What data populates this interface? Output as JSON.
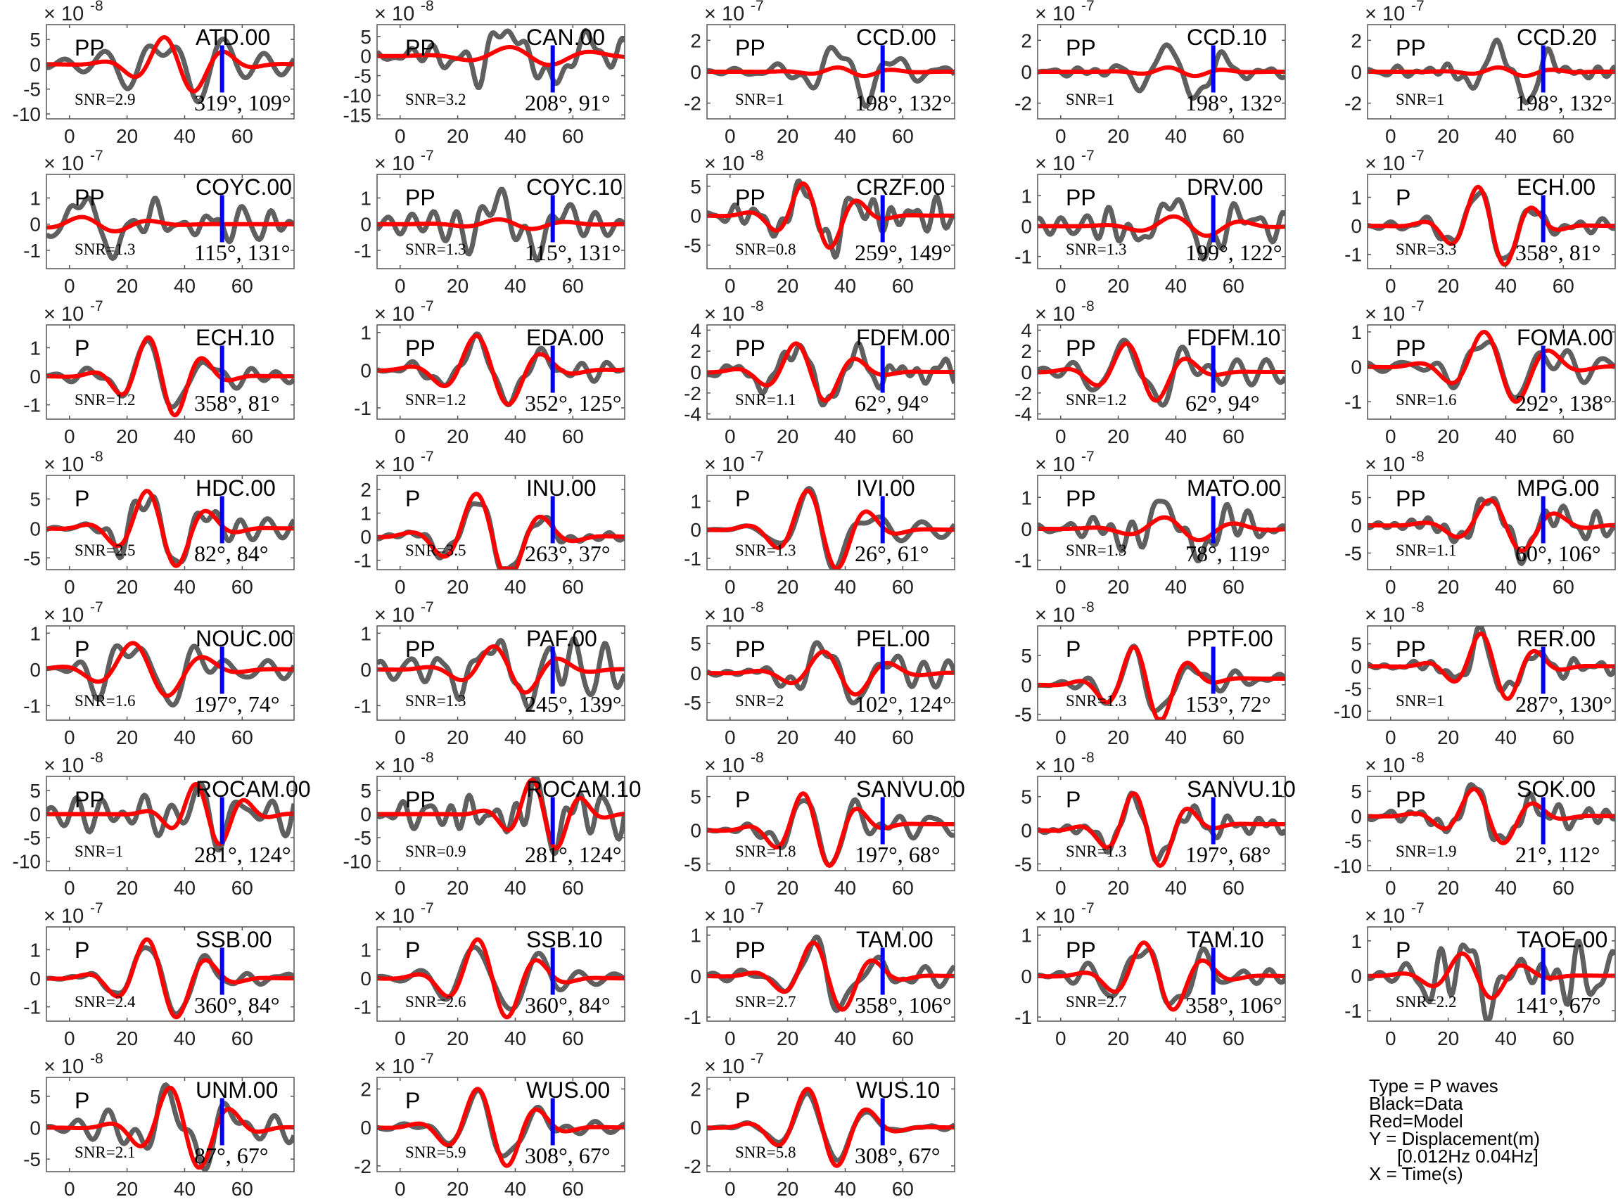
{
  "legend": {
    "type": "Type = P waves",
    "black": "Black=Data",
    "red": "Red=Model",
    "y": "Y = Displacement(m)",
    "band": "[0.012Hz 0.04Hz]",
    "x": "X = Time(s)"
  },
  "colors": {
    "data": "#5f5f5f",
    "model": "#ff0000",
    "marker": "#0000ee",
    "axis": "#555555"
  },
  "chart_data": {
    "type": "line",
    "x_ticks": [
      0,
      20,
      40,
      60
    ],
    "xlim": [
      -8,
      78
    ],
    "marker_time": 53,
    "panels": [
      {
        "station": "ATD.00",
        "phase": "PP",
        "snr": "SNR=2.9",
        "angles": "319°, 109°",
        "exp": "-8",
        "yticks": [
          5,
          0,
          -5,
          -10
        ],
        "ylim": [
          -11,
          8
        ],
        "model": {
          "amp": 6,
          "center": 38,
          "period": 22,
          "bg": 0
        },
        "data": {
          "amp": 7.5,
          "noise": 1.2,
          "phase": 0
        }
      },
      {
        "station": "CAN.00",
        "phase": "PP",
        "snr": "SNR=3.2",
        "angles": "208°, 91°",
        "exp": "-8",
        "yticks": [
          5,
          0,
          -5,
          -10,
          -15
        ],
        "ylim": [
          -16,
          8
        ],
        "model": {
          "amp": 2.5,
          "center": 45,
          "period": 30,
          "bg": 0
        },
        "data": {
          "amp": 8,
          "noise": 1.5,
          "phase": 1
        }
      },
      {
        "station": "CCD.00",
        "phase": "PP",
        "snr": "SNR=1",
        "angles": "198°, 132°",
        "exp": "-7",
        "yticks": [
          2,
          0,
          -2
        ],
        "ylim": [
          -3,
          3
        ],
        "model": {
          "amp": 0.3,
          "center": 42,
          "period": 20,
          "bg": 0
        },
        "data": {
          "amp": 2.3,
          "noise": 0.2,
          "phase": 2
        }
      },
      {
        "station": "CCD.10",
        "phase": "PP",
        "snr": "SNR=1",
        "angles": "198°, 132°",
        "exp": "-7",
        "yticks": [
          2,
          0,
          -2
        ],
        "ylim": [
          -3,
          3
        ],
        "model": {
          "amp": 0.3,
          "center": 42,
          "period": 20,
          "bg": 0
        },
        "data": {
          "amp": 2.3,
          "noise": 0.2,
          "phase": 2
        }
      },
      {
        "station": "CCD.20",
        "phase": "PP",
        "snr": "SNR=1",
        "angles": "198°, 132°",
        "exp": "-7",
        "yticks": [
          2,
          0,
          -2
        ],
        "ylim": [
          -3,
          3
        ],
        "model": {
          "amp": 0.3,
          "center": 42,
          "period": 20,
          "bg": 0
        },
        "data": {
          "amp": 2.3,
          "noise": 0.2,
          "phase": 2
        }
      },
      {
        "station": "COYC.00",
        "phase": "PP",
        "snr": "SNR=1.3",
        "angles": "115°, 131°",
        "exp": "-7",
        "yticks": [
          1,
          0,
          -1
        ],
        "ylim": [
          -1.7,
          1.9
        ],
        "model": {
          "amp": 0.3,
          "center": 10,
          "period": 25,
          "bg": 0
        },
        "data": {
          "amp": 1.2,
          "noise": 0.3,
          "phase": 3
        }
      },
      {
        "station": "COYC.10",
        "phase": "PP",
        "snr": "SNR=1.3",
        "angles": "115°, 131°",
        "exp": "-7",
        "yticks": [
          1,
          0,
          -1
        ],
        "ylim": [
          -1.7,
          1.9
        ],
        "model": {
          "amp": 0.2,
          "center": 40,
          "period": 25,
          "bg": 0
        },
        "data": {
          "amp": 1.2,
          "noise": 0.3,
          "phase": 3
        }
      },
      {
        "station": "CRZF.00",
        "phase": "PP",
        "snr": "SNR=0.8",
        "angles": "259°, 149°",
        "exp": "-8",
        "yticks": [
          5,
          0,
          -5
        ],
        "ylim": [
          -9,
          7
        ],
        "model": {
          "amp": 6,
          "center": 30,
          "period": 20,
          "bg": 0
        },
        "data": {
          "amp": 6.5,
          "noise": 1,
          "phase": 4
        }
      },
      {
        "station": "DRV.00",
        "phase": "PP",
        "snr": "SNR=1.3",
        "angles": "199°, 122°",
        "exp": "-7",
        "yticks": [
          1,
          0,
          -1
        ],
        "ylim": [
          -1.4,
          1.7
        ],
        "model": {
          "amp": 0.35,
          "center": 45,
          "period": 25,
          "bg": 0
        },
        "data": {
          "amp": 1.1,
          "noise": 0.25,
          "phase": 5
        }
      },
      {
        "station": "ECH.00",
        "phase": "P",
        "snr": "SNR=3.3",
        "angles": "358°, 81°",
        "exp": "-7",
        "yticks": [
          1,
          0,
          -1
        ],
        "ylim": [
          -1.5,
          1.8
        ],
        "model": {
          "amp": 1.5,
          "center": 35,
          "period": 20,
          "bg": 0
        },
        "data": {
          "amp": 1.6,
          "noise": 0.1,
          "phase": 0
        }
      },
      {
        "station": "ECH.10",
        "phase": "P",
        "snr": "SNR=1.2",
        "angles": "358°, 81°",
        "exp": "-7",
        "yticks": [
          1,
          0,
          -1
        ],
        "ylim": [
          -1.5,
          1.8
        ],
        "model": {
          "amp": 1.5,
          "center": 32,
          "period": 20,
          "bg": 0
        },
        "data": {
          "amp": 1.6,
          "noise": 0.1,
          "phase": 0
        }
      },
      {
        "station": "EDA.00",
        "phase": "PP",
        "snr": "SNR=1.2",
        "angles": "352°, 125°",
        "exp": "-7",
        "yticks": [
          1,
          0,
          -1
        ],
        "ylim": [
          -1.3,
          1.2
        ],
        "model": {
          "amp": 1,
          "center": 32,
          "period": 24,
          "bg": 0
        },
        "data": {
          "amp": 1.05,
          "noise": 0.1,
          "phase": 1
        }
      },
      {
        "station": "FDFM.00",
        "phase": "PP",
        "snr": "SNR=1.1",
        "angles": "62°, 94°",
        "exp": "-8",
        "yticks": [
          4,
          2,
          0,
          -2,
          -4
        ],
        "ylim": [
          -4.5,
          4.5
        ],
        "model": {
          "amp": 3,
          "center": 28,
          "period": 22,
          "bg": 0
        },
        "data": {
          "amp": 3.8,
          "noise": 0.6,
          "phase": 2
        }
      },
      {
        "station": "FDFM.10",
        "phase": "PP",
        "snr": "SNR=1.2",
        "angles": "62°, 94°",
        "exp": "-8",
        "yticks": [
          4,
          2,
          0,
          -2,
          -4
        ],
        "ylim": [
          -4.5,
          4.5
        ],
        "model": {
          "amp": 3,
          "center": 28,
          "period": 22,
          "bg": 0
        },
        "data": {
          "amp": 3.8,
          "noise": 0.6,
          "phase": 2
        }
      },
      {
        "station": "FOMA.00",
        "phase": "PP",
        "snr": "SNR=1.6",
        "angles": "292°, 138°",
        "exp": "-7",
        "yticks": [
          1,
          0,
          -1
        ],
        "ylim": [
          -1.5,
          1.2
        ],
        "model": {
          "amp": 1.1,
          "center": 38,
          "period": 24,
          "bg": 0
        },
        "data": {
          "amp": 1,
          "noise": 0.15,
          "phase": 3
        }
      },
      {
        "station": "HDC.00",
        "phase": "P",
        "snr": "SNR=2.5",
        "angles": "82°, 84°",
        "exp": "-8",
        "yticks": [
          5,
          0,
          -5
        ],
        "ylim": [
          -7,
          9
        ],
        "model": {
          "amp": 7,
          "center": 32,
          "period": 22,
          "bg": 0
        },
        "data": {
          "amp": 7.5,
          "noise": 0.8,
          "phase": 4
        }
      },
      {
        "station": "INU.00",
        "phase": "P",
        "snr": "SNR=3.5",
        "angles": "263°, 37°",
        "exp": "-7",
        "yticks": [
          2,
          1,
          0,
          -1
        ],
        "ylim": [
          -1.4,
          2.6
        ],
        "model": {
          "amp": 2,
          "center": 32,
          "period": 24,
          "bg": 0
        },
        "data": {
          "amp": 2,
          "noise": 0.1,
          "phase": 5
        }
      },
      {
        "station": "IVI.00",
        "phase": "P",
        "snr": "SNR=1.3",
        "angles": "26°, 61°",
        "exp": "-7",
        "yticks": [
          1,
          0,
          -1
        ],
        "ylim": [
          -1.4,
          1.9
        ],
        "model": {
          "amp": 1.5,
          "center": 32,
          "period": 22,
          "bg": 0
        },
        "data": {
          "amp": 1.6,
          "noise": 0.15,
          "phase": 0
        }
      },
      {
        "station": "MATO.00",
        "phase": "PP",
        "snr": "SNR=1.3",
        "angles": "78°, 119°",
        "exp": "-7",
        "yticks": [
          1,
          0,
          -1
        ],
        "ylim": [
          -1.3,
          1.7
        ],
        "model": {
          "amp": 0.4,
          "center": 42,
          "period": 26,
          "bg": 0
        },
        "data": {
          "amp": 1,
          "noise": 0.2,
          "phase": 1
        }
      },
      {
        "station": "MPG.00",
        "phase": "PP",
        "snr": "SNR=1.1",
        "angles": "60°, 106°",
        "exp": "-8",
        "yticks": [
          5,
          0,
          -5
        ],
        "ylim": [
          -8,
          9
        ],
        "model": {
          "amp": 5,
          "center": 40,
          "period": 24,
          "bg": 0
        },
        "data": {
          "amp": 6.5,
          "noise": 0.8,
          "phase": 2
        }
      },
      {
        "station": "NOUC.00",
        "phase": "P",
        "snr": "SNR=1.6",
        "angles": "197°, 74°",
        "exp": "-7",
        "yticks": [
          1,
          0,
          -1
        ],
        "ylim": [
          -1.4,
          1.2
        ],
        "model": {
          "amp": 0.8,
          "center": 28,
          "period": 26,
          "bg": 0
        },
        "data": {
          "amp": 1,
          "noise": 0.2,
          "phase": 3
        }
      },
      {
        "station": "PAF.00",
        "phase": "PP",
        "snr": "SNR=1.3",
        "angles": "245°, 139°",
        "exp": "-7",
        "yticks": [
          1,
          0,
          -1
        ],
        "ylim": [
          -1.4,
          1.2
        ],
        "model": {
          "amp": 0.7,
          "center": 38,
          "period": 24,
          "bg": 0
        },
        "data": {
          "amp": 1,
          "noise": 0.3,
          "phase": 4
        }
      },
      {
        "station": "PEL.00",
        "phase": "PP",
        "snr": "SNR=2",
        "angles": "102°, 124°",
        "exp": "-8",
        "yticks": [
          5,
          0,
          -5
        ],
        "ylim": [
          -8,
          8
        ],
        "model": {
          "amp": 4,
          "center": 38,
          "period": 24,
          "bg": 0
        },
        "data": {
          "amp": 6,
          "noise": 1.2,
          "phase": 5
        }
      },
      {
        "station": "PPTF.00",
        "phase": "P",
        "snr": "SNR=1.3",
        "angles": "153°, 72°",
        "exp": "-8",
        "yticks": [
          5,
          0,
          -5
        ],
        "ylim": [
          -6,
          10
        ],
        "model": {
          "amp": 7,
          "center": 30,
          "period": 20,
          "bg": 1
        },
        "data": {
          "amp": 7,
          "noise": 0.8,
          "phase": 0
        }
      },
      {
        "station": "RER.00",
        "phase": "PP",
        "snr": "SNR=1",
        "angles": "287°, 130°",
        "exp": "-8",
        "yticks": [
          5,
          0,
          -5,
          -10
        ],
        "ylim": [
          -12,
          9
        ],
        "model": {
          "amp": 8,
          "center": 36,
          "period": 20,
          "bg": 0
        },
        "data": {
          "amp": 8,
          "noise": 1,
          "phase": 1
        }
      },
      {
        "station": "ROCAM.00",
        "phase": "PP",
        "snr": "SNR=1",
        "angles": "281°, 124°",
        "exp": "-8",
        "yticks": [
          5,
          0,
          -5,
          -10
        ],
        "ylim": [
          -12,
          8
        ],
        "model": {
          "amp": 7,
          "center": 48,
          "period": 18,
          "bg": 0
        },
        "data": {
          "amp": 6,
          "noise": 2.2,
          "phase": 2
        }
      },
      {
        "station": "ROCAM.10",
        "phase": "PP",
        "snr": "SNR=0.9",
        "angles": "281°, 124°",
        "exp": "-8",
        "yticks": [
          5,
          0,
          -5,
          -10
        ],
        "ylim": [
          -12,
          8
        ],
        "model": {
          "amp": 8,
          "center": 50,
          "period": 18,
          "bg": 0
        },
        "data": {
          "amp": 6,
          "noise": 2.2,
          "phase": 3
        }
      },
      {
        "station": "SANVU.00",
        "phase": "P",
        "snr": "SNR=1.8",
        "angles": "197°, 68°",
        "exp": "-8",
        "yticks": [
          5,
          0,
          -5
        ],
        "ylim": [
          -6,
          8
        ],
        "model": {
          "amp": 6,
          "center": 30,
          "period": 20,
          "bg": 1
        },
        "data": {
          "amp": 6,
          "noise": 0.6,
          "phase": 4
        }
      },
      {
        "station": "SANVU.10",
        "phase": "P",
        "snr": "SNR=1.3",
        "angles": "197°, 68°",
        "exp": "-8",
        "yticks": [
          5,
          0,
          -5
        ],
        "ylim": [
          -6,
          8
        ],
        "model": {
          "amp": 6,
          "center": 30,
          "period": 20,
          "bg": 1
        },
        "data": {
          "amp": 6,
          "noise": 0.6,
          "phase": 4
        }
      },
      {
        "station": "SOK.00",
        "phase": "PP",
        "snr": "SNR=1.9",
        "angles": "21°, 112°",
        "exp": "-8",
        "yticks": [
          5,
          0,
          -5,
          -10
        ],
        "ylim": [
          -11,
          8
        ],
        "model": {
          "amp": 6,
          "center": 34,
          "period": 22,
          "bg": 0
        },
        "data": {
          "amp": 7,
          "noise": 0.8,
          "phase": 5
        }
      },
      {
        "station": "SSB.00",
        "phase": "P",
        "snr": "SNR=2.4",
        "angles": "360°, 84°",
        "exp": "-7",
        "yticks": [
          1,
          0,
          -1
        ],
        "ylim": [
          -1.5,
          1.8
        ],
        "model": {
          "amp": 1.5,
          "center": 32,
          "period": 22,
          "bg": 0
        },
        "data": {
          "amp": 1.6,
          "noise": 0.1,
          "phase": 0
        }
      },
      {
        "station": "SSB.10",
        "phase": "P",
        "snr": "SNR=2.6",
        "angles": "360°, 84°",
        "exp": "-7",
        "yticks": [
          1,
          0,
          -1
        ],
        "ylim": [
          -1.5,
          1.8
        ],
        "model": {
          "amp": 1.5,
          "center": 32,
          "period": 22,
          "bg": 0
        },
        "data": {
          "amp": 1.6,
          "noise": 0.1,
          "phase": 0
        }
      },
      {
        "station": "TAM.00",
        "phase": "PP",
        "snr": "SNR=2.7",
        "angles": "358°, 106°",
        "exp": "-7",
        "yticks": [
          1,
          0,
          -1
        ],
        "ylim": [
          -1.1,
          1.2
        ],
        "model": {
          "amp": 0.9,
          "center": 34,
          "period": 22,
          "bg": 0
        },
        "data": {
          "amp": 1,
          "noise": 0.1,
          "phase": 1
        }
      },
      {
        "station": "TAM.10",
        "phase": "PP",
        "snr": "SNR=2.7",
        "angles": "358°, 106°",
        "exp": "-7",
        "yticks": [
          1,
          0,
          -1
        ],
        "ylim": [
          -1.1,
          1.2
        ],
        "model": {
          "amp": 0.9,
          "center": 34,
          "period": 22,
          "bg": 0
        },
        "data": {
          "amp": 1,
          "noise": 0.1,
          "phase": 1
        }
      },
      {
        "station": "TAOE.00",
        "phase": "P",
        "snr": "SNR=2.2",
        "angles": "141°, 67°",
        "exp": "-7",
        "yticks": [
          1,
          0,
          -1
        ],
        "ylim": [
          -1.3,
          1.4
        ],
        "model": {
          "amp": 0.7,
          "center": 30,
          "period": 22,
          "bg": 0
        },
        "data": {
          "amp": 0.9,
          "noise": 0.25,
          "phase": 2
        }
      },
      {
        "station": "UNM.00",
        "phase": "P",
        "snr": "SNR=2.1",
        "angles": "87°, 67°",
        "exp": "-8",
        "yticks": [
          5,
          0,
          -5
        ],
        "ylim": [
          -7,
          8
        ],
        "model": {
          "amp": 7,
          "center": 40,
          "period": 22,
          "bg": 0
        },
        "data": {
          "amp": 7,
          "noise": 0.8,
          "phase": 3
        }
      },
      {
        "station": "WUS.00",
        "phase": "P",
        "snr": "SNR=5.9",
        "angles": "308°, 67°",
        "exp": "-7",
        "yticks": [
          2,
          0,
          -2
        ],
        "ylim": [
          -2.3,
          2.6
        ],
        "model": {
          "amp": 2.2,
          "center": 32,
          "period": 22,
          "bg": 0
        },
        "data": {
          "amp": 2.2,
          "noise": 0.1,
          "phase": 4
        }
      },
      {
        "station": "WUS.10",
        "phase": "P",
        "snr": "SNR=5.8",
        "angles": "308°, 67°",
        "exp": "-7",
        "yticks": [
          2,
          0,
          -2
        ],
        "ylim": [
          -2.3,
          2.6
        ],
        "model": {
          "amp": 2.2,
          "center": 32,
          "period": 22,
          "bg": 0
        },
        "data": {
          "amp": 2.2,
          "noise": 0.1,
          "phase": 4
        }
      }
    ]
  }
}
